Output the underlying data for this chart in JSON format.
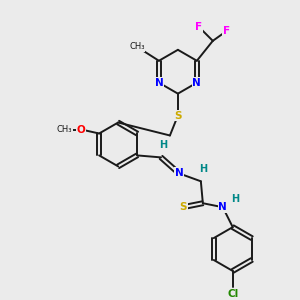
{
  "background_color": "#ebebeb",
  "bond_color": "#1a1a1a",
  "atom_colors": {
    "N": "#0000ff",
    "S": "#ccaa00",
    "O": "#ff0000",
    "F": "#ff00ff",
    "Cl": "#228800",
    "H": "#008888",
    "C": "#1a1a1a"
  },
  "figsize": [
    3.0,
    3.0
  ],
  "dpi": 100
}
